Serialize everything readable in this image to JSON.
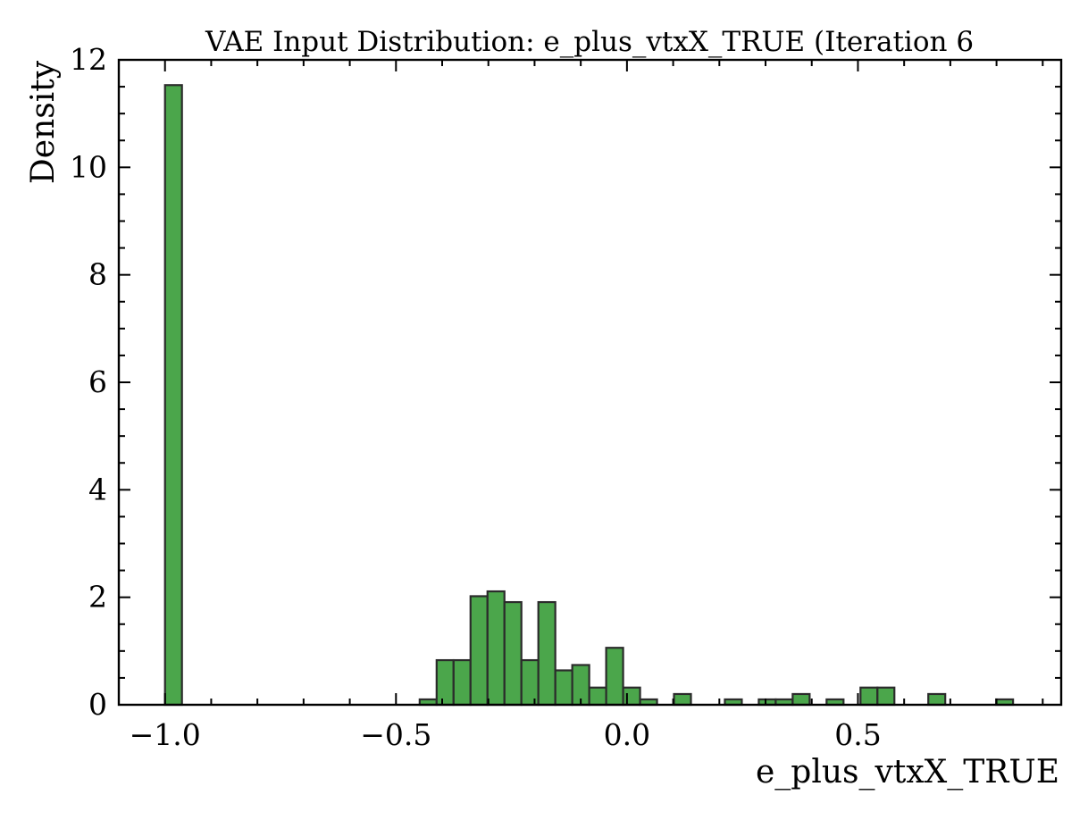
{
  "chart_data": {
    "type": "bar",
    "title": "VAE Input Distribution: e_plus_vtxX_TRUE (Iteration 6",
    "xlabel": "e_plus_vtxX_TRUE",
    "ylabel": "Density",
    "xlim": [
      -1.1,
      0.94
    ],
    "ylim": [
      0,
      12
    ],
    "x_major_ticks": [
      -1.0,
      -0.5,
      0.0,
      0.5
    ],
    "x_tick_labels": [
      "−1.0",
      "−0.5",
      "0.0",
      "0.5"
    ],
    "x_minor_step": 0.1,
    "y_major_ticks": [
      0,
      2,
      4,
      6,
      8,
      10,
      12
    ],
    "y_tick_labels": [
      "0",
      "2",
      "4",
      "6",
      "8",
      "10",
      "12"
    ],
    "y_minor_step": 0.5,
    "grid": false,
    "bar_color": "#4ba64b",
    "edge_color": "#2b2b2b",
    "bin_width": 0.0367,
    "bins": [
      {
        "x": -1.0,
        "value": 11.53
      },
      {
        "x": -0.4487,
        "value": 0.1
      },
      {
        "x": -0.412,
        "value": 0.83
      },
      {
        "x": -0.3753,
        "value": 0.83
      },
      {
        "x": -0.3386,
        "value": 2.02
      },
      {
        "x": -0.3019,
        "value": 2.11
      },
      {
        "x": -0.2652,
        "value": 1.91
      },
      {
        "x": -0.2285,
        "value": 0.83
      },
      {
        "x": -0.1918,
        "value": 1.91
      },
      {
        "x": -0.1551,
        "value": 0.64
      },
      {
        "x": -0.1184,
        "value": 0.74
      },
      {
        "x": -0.0817,
        "value": 0.32
      },
      {
        "x": -0.045,
        "value": 1.06
      },
      {
        "x": -0.0083,
        "value": 0.32
      },
      {
        "x": 0.0284,
        "value": 0.1
      },
      {
        "x": 0.0651,
        "value": 0.0
      },
      {
        "x": 0.1018,
        "value": 0.2
      },
      {
        "x": 0.1385,
        "value": 0.0
      },
      {
        "x": 0.1752,
        "value": 0.0
      },
      {
        "x": 0.2119,
        "value": 0.1
      },
      {
        "x": 0.2486,
        "value": 0.0
      },
      {
        "x": 0.2853,
        "value": 0.1
      },
      {
        "x": 0.322,
        "value": 0.1
      },
      {
        "x": 0.3587,
        "value": 0.2
      },
      {
        "x": 0.3954,
        "value": 0.0
      },
      {
        "x": 0.4321,
        "value": 0.1
      },
      {
        "x": 0.4688,
        "value": 0.0
      },
      {
        "x": 0.5055,
        "value": 0.32
      },
      {
        "x": 0.5422,
        "value": 0.32
      },
      {
        "x": 0.5789,
        "value": 0.0
      },
      {
        "x": 0.6156,
        "value": 0.0
      },
      {
        "x": 0.6523,
        "value": 0.2
      },
      {
        "x": 0.689,
        "value": 0.0
      },
      {
        "x": 0.7257,
        "value": 0.0
      },
      {
        "x": 0.7624,
        "value": 0.0
      },
      {
        "x": 0.7991,
        "value": 0.1
      }
    ]
  }
}
